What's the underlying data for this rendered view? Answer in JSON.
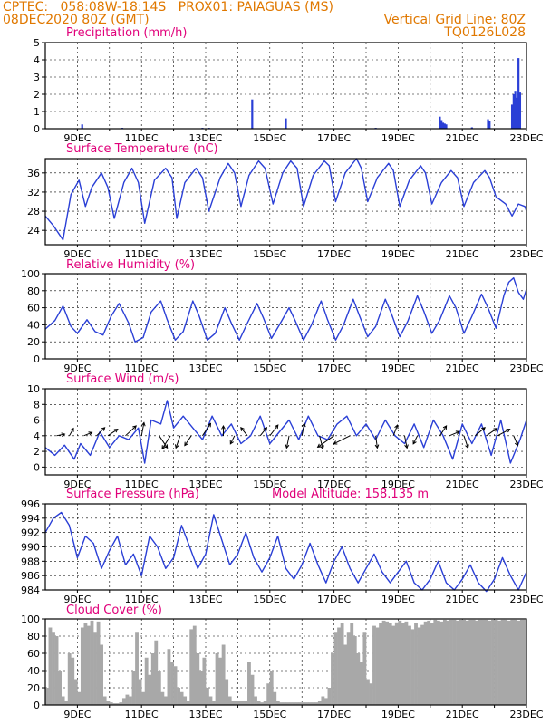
{
  "header": {
    "line1": "CPTEC:   058:08W-18:14S   PROX01: PAIAGUAS (MS)",
    "line2": "08DEC2020 80Z (GMT)",
    "right1": "Vertical Grid Line: 80Z",
    "right2": "TQ0126L028"
  },
  "colors": {
    "series": "#2a3fd6",
    "wind_arrow": "#000000",
    "cloud": "#a8a8a8",
    "title": "#e0007a",
    "header": "#e07800"
  },
  "x_axis": {
    "start_day": 8,
    "end_day": 23,
    "tick_labels": [
      "9DEC",
      "11DEC",
      "13DEC",
      "15DEC",
      "17DEC",
      "19DEC",
      "21DEC",
      "23DEC"
    ],
    "tick_days": [
      9,
      11,
      13,
      15,
      17,
      19,
      21,
      23
    ]
  },
  "chart_data": [
    {
      "type": "bar",
      "title": "Precipitation (mm/h)",
      "ylim": [
        0,
        5
      ],
      "yticks": [
        0,
        1,
        2,
        3,
        4,
        5
      ],
      "x": [
        9.15,
        10.4,
        12.9,
        13.1,
        14.45,
        15.5,
        18.3,
        20.3,
        20.35,
        20.4,
        20.45,
        20.5,
        21.3,
        21.8,
        21.85,
        22.55,
        22.6,
        22.65,
        22.7,
        22.75,
        22.8
      ],
      "values": [
        0.25,
        0.05,
        0.05,
        0.05,
        1.7,
        0.6,
        0.05,
        0.7,
        0.5,
        0.35,
        0.3,
        0.25,
        0.08,
        0.55,
        0.45,
        1.4,
        2.0,
        2.2,
        1.8,
        4.1,
        2.1
      ]
    },
    {
      "type": "line",
      "title": "Surface Temperature (nC)",
      "ylim": [
        21,
        39
      ],
      "yticks": [
        24,
        28,
        32,
        36
      ],
      "x": [
        8.0,
        8.25,
        8.55,
        8.8,
        9.05,
        9.25,
        9.45,
        9.75,
        9.95,
        10.15,
        10.45,
        10.7,
        10.9,
        11.1,
        11.4,
        11.75,
        11.95,
        12.1,
        12.35,
        12.7,
        12.9,
        13.1,
        13.45,
        13.7,
        13.9,
        14.1,
        14.35,
        14.65,
        14.85,
        15.1,
        15.4,
        15.65,
        15.85,
        16.05,
        16.35,
        16.7,
        16.85,
        17.05,
        17.35,
        17.7,
        17.85,
        18.05,
        18.35,
        18.7,
        18.85,
        19.05,
        19.35,
        19.7,
        19.85,
        20.05,
        20.35,
        20.65,
        20.85,
        21.05,
        21.35,
        21.7,
        21.85,
        22.05,
        22.35,
        22.55,
        22.75,
        22.95,
        23.0
      ],
      "values": [
        27.0,
        25.0,
        22.0,
        31.5,
        34.5,
        29.0,
        33.0,
        36.0,
        33.0,
        26.5,
        34.0,
        37.0,
        34.0,
        25.5,
        34.5,
        37.0,
        35.0,
        26.5,
        34.0,
        37.0,
        35.0,
        28.0,
        35.0,
        38.0,
        36.0,
        29.0,
        35.5,
        38.5,
        37.0,
        29.5,
        36.0,
        38.5,
        37.0,
        29.0,
        35.5,
        38.5,
        37.5,
        30.0,
        36.0,
        39.0,
        37.0,
        30.0,
        35.0,
        38.0,
        36.5,
        29.0,
        34.5,
        37.5,
        36.0,
        29.5,
        34.0,
        36.5,
        35.0,
        29.0,
        34.0,
        36.5,
        35.0,
        31.0,
        29.5,
        27.0,
        29.5,
        29.0,
        28.0
      ]
    },
    {
      "type": "line",
      "title": "Relative Humidity (%)",
      "ylim": [
        0,
        100
      ],
      "yticks": [
        0,
        20,
        40,
        60,
        80,
        100
      ],
      "x": [
        8.0,
        8.3,
        8.55,
        8.8,
        9.0,
        9.3,
        9.55,
        9.8,
        10.05,
        10.3,
        10.6,
        10.8,
        11.05,
        11.3,
        11.6,
        11.8,
        12.05,
        12.3,
        12.6,
        12.8,
        13.05,
        13.3,
        13.6,
        13.8,
        14.05,
        14.3,
        14.6,
        14.8,
        15.05,
        15.3,
        15.6,
        15.8,
        16.05,
        16.3,
        16.6,
        16.8,
        17.05,
        17.3,
        17.6,
        17.8,
        18.05,
        18.3,
        18.6,
        18.8,
        19.05,
        19.3,
        19.6,
        19.8,
        20.05,
        20.3,
        20.6,
        20.8,
        21.05,
        21.3,
        21.6,
        21.8,
        22.05,
        22.3,
        22.45,
        22.6,
        22.75,
        22.9,
        23.0
      ],
      "values": [
        35,
        45,
        62,
        38,
        30,
        46,
        32,
        28,
        50,
        65,
        42,
        20,
        25,
        55,
        68,
        46,
        22,
        32,
        68,
        50,
        22,
        30,
        60,
        42,
        22,
        42,
        65,
        48,
        24,
        40,
        60,
        44,
        22,
        40,
        68,
        46,
        22,
        40,
        70,
        50,
        26,
        38,
        70,
        52,
        26,
        44,
        74,
        56,
        30,
        46,
        74,
        60,
        30,
        50,
        76,
        60,
        36,
        75,
        90,
        95,
        78,
        70,
        82
      ]
    },
    {
      "type": "line",
      "title": "Surface Wind (m/s)",
      "ylim": [
        -1,
        10
      ],
      "yticks": [
        0,
        2,
        4,
        6,
        8,
        10
      ],
      "x": [
        8.0,
        8.3,
        8.6,
        8.9,
        9.1,
        9.4,
        9.7,
        10.0,
        10.3,
        10.6,
        10.9,
        11.1,
        11.3,
        11.6,
        11.8,
        12.0,
        12.3,
        12.6,
        12.9,
        13.2,
        13.5,
        13.8,
        14.1,
        14.4,
        14.7,
        15.0,
        15.3,
        15.6,
        15.9,
        16.2,
        16.5,
        16.8,
        17.1,
        17.4,
        17.7,
        18.0,
        18.3,
        18.6,
        18.9,
        19.2,
        19.5,
        19.8,
        20.1,
        20.4,
        20.7,
        21.0,
        21.3,
        21.6,
        21.9,
        22.2,
        22.5,
        22.8,
        23.0
      ],
      "values": [
        2.5,
        1.5,
        2.8,
        1.0,
        3.0,
        1.5,
        4.5,
        2.5,
        4.0,
        3.5,
        5.0,
        0.5,
        6.0,
        5.5,
        8.5,
        5.0,
        6.5,
        5.0,
        3.5,
        6.5,
        4.0,
        5.5,
        3.0,
        4.0,
        6.5,
        3.0,
        4.5,
        6.0,
        3.5,
        6.5,
        4.0,
        3.5,
        5.5,
        6.5,
        4.0,
        5.5,
        3.5,
        6.0,
        4.0,
        3.0,
        5.5,
        2.5,
        6.0,
        4.0,
        1.0,
        5.5,
        3.0,
        5.5,
        1.5,
        6.0,
        0.5,
        3.5,
        6.0
      ],
      "arrows": [
        {
          "x": 8.35,
          "u": 1.0,
          "v": 0.2
        },
        {
          "x": 8.75,
          "u": 0.5,
          "v": 0.9
        },
        {
          "x": 9.2,
          "u": 1.0,
          "v": 0.4
        },
        {
          "x": 9.6,
          "u": 1.0,
          "v": 1.0
        },
        {
          "x": 9.95,
          "u": 1.2,
          "v": 0.8
        },
        {
          "x": 10.5,
          "u": 1.3,
          "v": 1.2
        },
        {
          "x": 11.0,
          "u": 0.3,
          "v": 1.6
        },
        {
          "x": 11.55,
          "u": 1.0,
          "v": -1.5
        },
        {
          "x": 11.9,
          "u": -1.0,
          "v": -1.6
        },
        {
          "x": 12.2,
          "u": -0.5,
          "v": -1.5
        },
        {
          "x": 12.55,
          "u": -0.8,
          "v": -1.2
        },
        {
          "x": 12.9,
          "u": 1.0,
          "v": 1.5
        },
        {
          "x": 13.55,
          "u": 0.0,
          "v": 1.2
        },
        {
          "x": 13.9,
          "u": -0.5,
          "v": -1.0
        },
        {
          "x": 14.3,
          "u": -0.8,
          "v": 1.0
        },
        {
          "x": 14.7,
          "u": 0.8,
          "v": 1.0
        },
        {
          "x": 15.0,
          "u": 1.0,
          "v": 1.3
        },
        {
          "x": 15.6,
          "u": -0.3,
          "v": -1.5
        },
        {
          "x": 16.0,
          "u": 0.3,
          "v": 1.5
        },
        {
          "x": 16.55,
          "u": 0.4,
          "v": -1.6
        },
        {
          "x": 17.0,
          "u": -2.0,
          "v": -1.4
        },
        {
          "x": 17.5,
          "u": -2.0,
          "v": -1.0
        },
        {
          "x": 18.3,
          "u": 0.2,
          "v": -1.5
        },
        {
          "x": 18.85,
          "u": 0.5,
          "v": 1.3
        },
        {
          "x": 19.2,
          "u": 0.3,
          "v": -1.5
        },
        {
          "x": 19.6,
          "u": -0.5,
          "v": -1.0
        },
        {
          "x": 20.3,
          "u": 0.8,
          "v": 1.2
        },
        {
          "x": 20.6,
          "u": 1.2,
          "v": 0.5
        },
        {
          "x": 21.05,
          "u": 0.5,
          "v": -1.5
        },
        {
          "x": 21.4,
          "u": 1.2,
          "v": 1.0
        },
        {
          "x": 21.75,
          "u": 1.3,
          "v": 0.9
        },
        {
          "x": 22.1,
          "u": 1.5,
          "v": 0.8
        },
        {
          "x": 22.6,
          "u": 0.5,
          "v": -1.2
        }
      ]
    },
    {
      "type": "line",
      "title": "Surface Pressure (hPa)",
      "subtitle": "Model Altitude: 158.135 m",
      "ylim": [
        984,
        996
      ],
      "yticks": [
        984,
        986,
        988,
        990,
        992,
        994,
        996
      ],
      "x": [
        8.0,
        8.25,
        8.5,
        8.75,
        9.0,
        9.25,
        9.5,
        9.75,
        10.0,
        10.25,
        10.5,
        10.75,
        11.0,
        11.25,
        11.5,
        11.75,
        12.0,
        12.25,
        12.5,
        12.75,
        13.0,
        13.25,
        13.5,
        13.75,
        14.0,
        14.25,
        14.5,
        14.75,
        15.0,
        15.25,
        15.5,
        15.75,
        16.0,
        16.25,
        16.5,
        16.75,
        17.0,
        17.25,
        17.5,
        17.75,
        18.0,
        18.25,
        18.5,
        18.75,
        19.0,
        19.25,
        19.5,
        19.75,
        20.0,
        20.25,
        20.5,
        20.75,
        21.0,
        21.25,
        21.5,
        21.75,
        22.0,
        22.25,
        22.5,
        22.75,
        23.0
      ],
      "values": [
        992.0,
        994.0,
        994.8,
        993.0,
        988.5,
        991.5,
        990.5,
        987.0,
        989.5,
        991.5,
        987.5,
        989.0,
        986.0,
        991.5,
        990.0,
        987.0,
        988.5,
        993.0,
        990.0,
        987.0,
        989.0,
        994.5,
        991.0,
        987.5,
        989.0,
        992.0,
        988.5,
        986.5,
        988.5,
        991.5,
        987.0,
        985.5,
        987.5,
        990.5,
        987.5,
        985.0,
        988.0,
        990.0,
        987.0,
        985.0,
        987.0,
        989.0,
        986.5,
        985.0,
        986.5,
        988.0,
        985.0,
        984.0,
        985.5,
        988.0,
        985.0,
        984.0,
        985.5,
        987.5,
        985.0,
        983.8,
        985.5,
        988.5,
        986.0,
        984.0,
        986.5
      ]
    },
    {
      "type": "bar",
      "title": "Cloud Cover (%)",
      "ylim": [
        0,
        100
      ],
      "yticks": [
        0,
        20,
        40,
        60,
        80,
        100
      ],
      "x": [
        8.0,
        8.1,
        8.2,
        8.3,
        8.4,
        8.5,
        8.6,
        8.7,
        8.8,
        8.9,
        9.0,
        9.1,
        9.2,
        9.3,
        9.4,
        9.5,
        9.6,
        9.7,
        9.8,
        9.9,
        10.0,
        10.1,
        10.2,
        10.3,
        10.4,
        10.5,
        10.6,
        10.7,
        10.8,
        10.9,
        11.0,
        11.1,
        11.2,
        11.3,
        11.4,
        11.5,
        11.6,
        11.7,
        11.8,
        11.9,
        12.0,
        12.1,
        12.2,
        12.3,
        12.4,
        12.5,
        12.6,
        12.7,
        12.8,
        12.9,
        13.0,
        13.1,
        13.2,
        13.3,
        13.4,
        13.5,
        13.6,
        13.7,
        13.8,
        13.9,
        14.0,
        14.1,
        14.2,
        14.3,
        14.4,
        14.5,
        14.6,
        14.7,
        14.8,
        14.9,
        15.0,
        15.1,
        15.2,
        15.3,
        15.4,
        15.5,
        15.6,
        15.7,
        15.8,
        15.9,
        16.0,
        16.1,
        16.2,
        16.3,
        16.4,
        16.5,
        16.6,
        16.7,
        16.8,
        16.9,
        17.0,
        17.1,
        17.2,
        17.3,
        17.4,
        17.5,
        17.6,
        17.7,
        17.8,
        17.9,
        18.0,
        18.1,
        18.2,
        18.3,
        18.4,
        18.5,
        18.6,
        18.7,
        18.8,
        18.9,
        19.0,
        19.1,
        19.2,
        19.3,
        19.4,
        19.5,
        19.6,
        19.7,
        19.8,
        19.9,
        20.0,
        20.1,
        20.2,
        20.3,
        20.4,
        20.5,
        20.6,
        20.7,
        20.8,
        20.9,
        21.0,
        21.1,
        21.2,
        21.3,
        21.4,
        21.5,
        21.6,
        21.7,
        21.8,
        21.9,
        22.0,
        22.1,
        22.2,
        22.3,
        22.4,
        22.5,
        22.6,
        22.7,
        22.8,
        22.9
      ],
      "values": [
        20,
        90,
        85,
        80,
        40,
        10,
        5,
        60,
        55,
        30,
        15,
        90,
        95,
        92,
        98,
        85,
        97,
        70,
        10,
        5,
        3,
        2,
        2,
        3,
        8,
        12,
        10,
        40,
        85,
        30,
        15,
        55,
        35,
        60,
        75,
        40,
        15,
        10,
        65,
        50,
        45,
        20,
        15,
        10,
        5,
        88,
        92,
        60,
        40,
        55,
        20,
        10,
        5,
        60,
        55,
        70,
        30,
        10,
        5,
        5,
        5,
        5,
        5,
        50,
        35,
        10,
        5,
        3,
        5,
        25,
        40,
        15,
        5,
        3,
        3,
        3,
        3,
        3,
        3,
        3,
        3,
        3,
        3,
        3,
        3,
        5,
        10,
        8,
        20,
        60,
        85,
        90,
        95,
        70,
        85,
        95,
        80,
        60,
        50,
        85,
        30,
        25,
        92,
        90,
        95,
        98,
        97,
        95,
        92,
        96,
        98,
        95,
        97,
        92,
        88,
        95,
        90,
        93,
        97,
        98,
        95,
        99,
        98,
        97,
        99,
        98,
        99,
        99,
        98,
        99,
        99,
        98,
        99,
        99,
        98,
        99,
        99,
        99,
        98,
        99,
        99,
        98,
        99,
        99,
        98,
        99,
        99,
        98,
        99,
        99
      ]
    }
  ]
}
